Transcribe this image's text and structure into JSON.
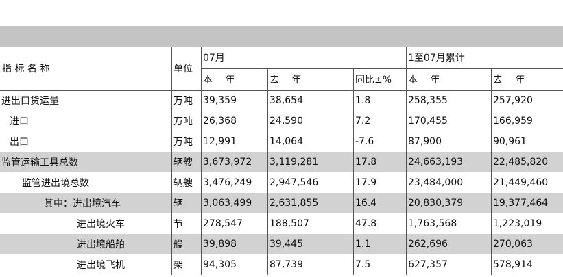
{
  "header": {
    "name": "指 标 名 称",
    "unit": "单位",
    "group1": "07月",
    "group2": "1至07月累计",
    "columns": [
      "本　 年",
      "去　 年",
      "同比±%",
      "本　 年",
      "去　 年"
    ]
  },
  "table": {
    "rows": [
      [
        "进出口货运量",
        "万吨",
        "39,359",
        "38,654",
        "1.8",
        "258,355",
        "257,920"
      ],
      [
        "进口",
        "万吨",
        "26,368",
        "24,590",
        "7.2",
        "170,455",
        "166,959"
      ],
      [
        "出口",
        "万吨",
        "12,991",
        "14,064",
        "-7.6",
        "87,900",
        "90,961"
      ],
      [
        "监管运输工具总数",
        "辆艘",
        "3,673,972",
        "3,119,281",
        "17.8",
        "24,663,193",
        "22,485,820"
      ],
      [
        "监管进出境总数",
        "辆艘",
        "3,476,249",
        "2,947,546",
        "17.9",
        "23,484,000",
        "21,449,460"
      ],
      [
        "其中：进出境汽车",
        "辆",
        "3,063,499",
        "2,631,855",
        "16.4",
        "20,830,379",
        "19,377,464"
      ],
      [
        "进出境火车",
        "节",
        "278,547",
        "188,507",
        "47.8",
        "1,763,568",
        "1,223,019"
      ],
      [
        "进出境船舶",
        "艘",
        "39,898",
        "39,445",
        "1.1",
        "262,696",
        "270,063"
      ],
      [
        "进出境飞机",
        "架",
        "94,305",
        "87,739",
        "7.5",
        "627,357",
        "578,914"
      ]
    ]
  }
}
